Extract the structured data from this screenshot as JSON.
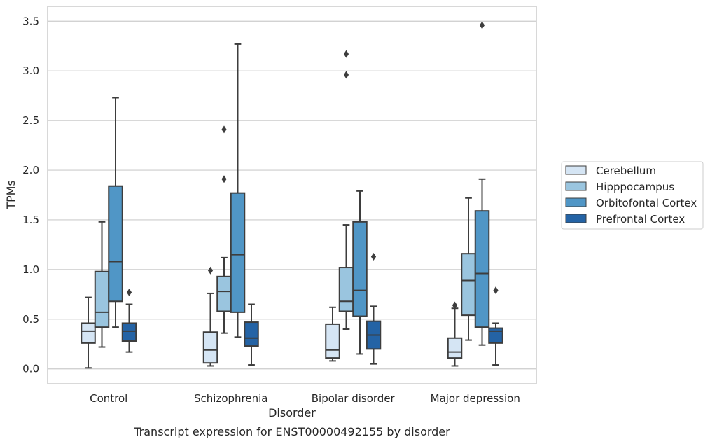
{
  "chart_data": {
    "type": "box",
    "title": "",
    "caption": "Transcript expression for ENST00000492155 by disorder",
    "xlabel": "Disorder",
    "ylabel": "TPMs",
    "ylim": [
      -0.15,
      3.65
    ],
    "yticks": [
      "0.0",
      "0.5",
      "1.0",
      "1.5",
      "2.0",
      "2.5",
      "3.0",
      "3.5"
    ],
    "grid": "horizontal",
    "legend_position": "right",
    "categories": [
      "Control",
      "Schizophrenia",
      "Bipolar disorder",
      "Major depression"
    ],
    "series": [
      {
        "name": "Cerebellum",
        "color": "#d5e5f4",
        "boxes": [
          {
            "whislo": 0.01,
            "q1": 0.26,
            "med": 0.38,
            "q3": 0.46,
            "whishi": 0.72,
            "fliers": []
          },
          {
            "whislo": 0.03,
            "q1": 0.06,
            "med": 0.19,
            "q3": 0.37,
            "whishi": 0.76,
            "fliers": [
              0.99
            ]
          },
          {
            "whislo": 0.08,
            "q1": 0.11,
            "med": 0.19,
            "q3": 0.45,
            "whishi": 0.62,
            "fliers": []
          },
          {
            "whislo": 0.03,
            "q1": 0.11,
            "med": 0.17,
            "q3": 0.31,
            "whishi": 0.61,
            "fliers": [
              0.64
            ]
          }
        ]
      },
      {
        "name": "Hipppocampus",
        "color": "#9ac5df",
        "boxes": [
          {
            "whislo": 0.22,
            "q1": 0.42,
            "med": 0.57,
            "q3": 0.98,
            "whishi": 1.48,
            "fliers": []
          },
          {
            "whislo": 0.36,
            "q1": 0.58,
            "med": 0.78,
            "q3": 0.93,
            "whishi": 1.12,
            "fliers": [
              1.91,
              2.41
            ]
          },
          {
            "whislo": 0.4,
            "q1": 0.58,
            "med": 0.68,
            "q3": 1.02,
            "whishi": 1.45,
            "fliers": [
              2.96,
              3.17
            ]
          },
          {
            "whislo": 0.29,
            "q1": 0.54,
            "med": 0.89,
            "q3": 1.16,
            "whishi": 1.72,
            "fliers": []
          }
        ]
      },
      {
        "name": "Orbitofontal Cortex",
        "color": "#5096c6",
        "boxes": [
          {
            "whislo": 0.42,
            "q1": 0.68,
            "med": 1.08,
            "q3": 1.84,
            "whishi": 2.73,
            "fliers": []
          },
          {
            "whislo": 0.32,
            "q1": 0.57,
            "med": 1.15,
            "q3": 1.77,
            "whishi": 3.27,
            "fliers": []
          },
          {
            "whislo": 0.15,
            "q1": 0.53,
            "med": 0.79,
            "q3": 1.48,
            "whishi": 1.79,
            "fliers": []
          },
          {
            "whislo": 0.24,
            "q1": 0.42,
            "med": 0.96,
            "q3": 1.59,
            "whishi": 1.91,
            "fliers": [
              3.46
            ]
          }
        ]
      },
      {
        "name": "Prefrontal Cortex",
        "color": "#2463a5",
        "boxes": [
          {
            "whislo": 0.17,
            "q1": 0.28,
            "med": 0.38,
            "q3": 0.46,
            "whishi": 0.65,
            "fliers": [
              0.77
            ]
          },
          {
            "whislo": 0.04,
            "q1": 0.23,
            "med": 0.31,
            "q3": 0.47,
            "whishi": 0.65,
            "fliers": []
          },
          {
            "whislo": 0.05,
            "q1": 0.2,
            "med": 0.34,
            "q3": 0.48,
            "whishi": 0.63,
            "fliers": [
              1.13
            ]
          },
          {
            "whislo": 0.04,
            "q1": 0.26,
            "med": 0.38,
            "q3": 0.41,
            "whishi": 0.46,
            "fliers": [
              0.79
            ]
          }
        ]
      }
    ]
  }
}
